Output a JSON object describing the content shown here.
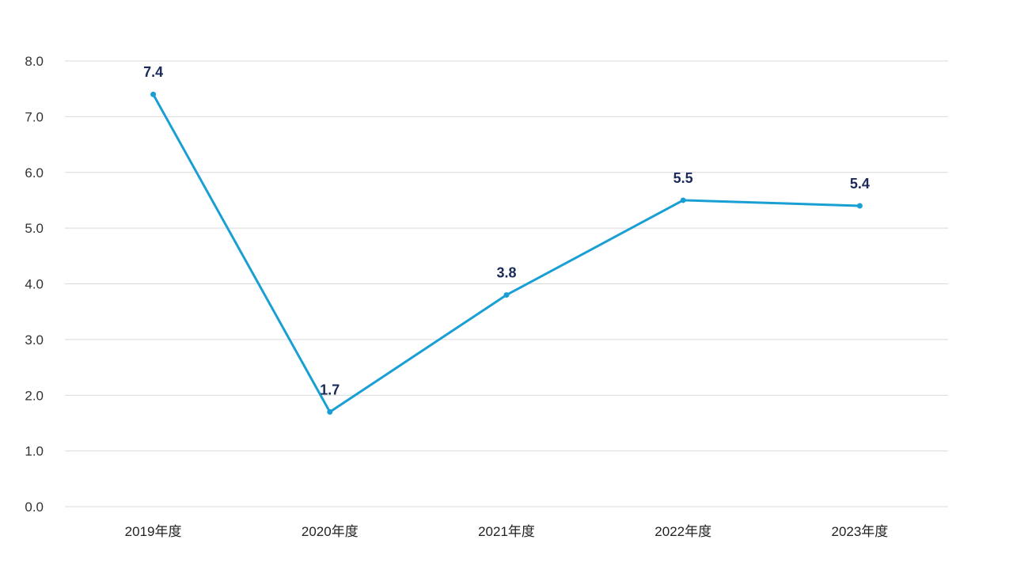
{
  "chart_data": {
    "type": "line",
    "categories": [
      "2019年度",
      "2020年度",
      "2021年度",
      "2022年度",
      "2023年度"
    ],
    "series": [
      {
        "values": [
          7.4,
          1.7,
          3.8,
          5.5,
          5.4
        ],
        "color": "#1a9fd4",
        "data_labels": [
          "7.4",
          "1.7",
          "3.8",
          "5.5",
          "5.4"
        ]
      }
    ],
    "title": "",
    "xlabel": "",
    "ylabel": "",
    "ylim": [
      0,
      8
    ],
    "yticks": [
      "0.0",
      "1.0",
      "2.0",
      "3.0",
      "4.0",
      "5.0",
      "6.0",
      "7.0",
      "8.0"
    ],
    "grid": true,
    "legend": "none",
    "label_color": "#1b2a5a",
    "grid_color": "#d9d9d9"
  }
}
